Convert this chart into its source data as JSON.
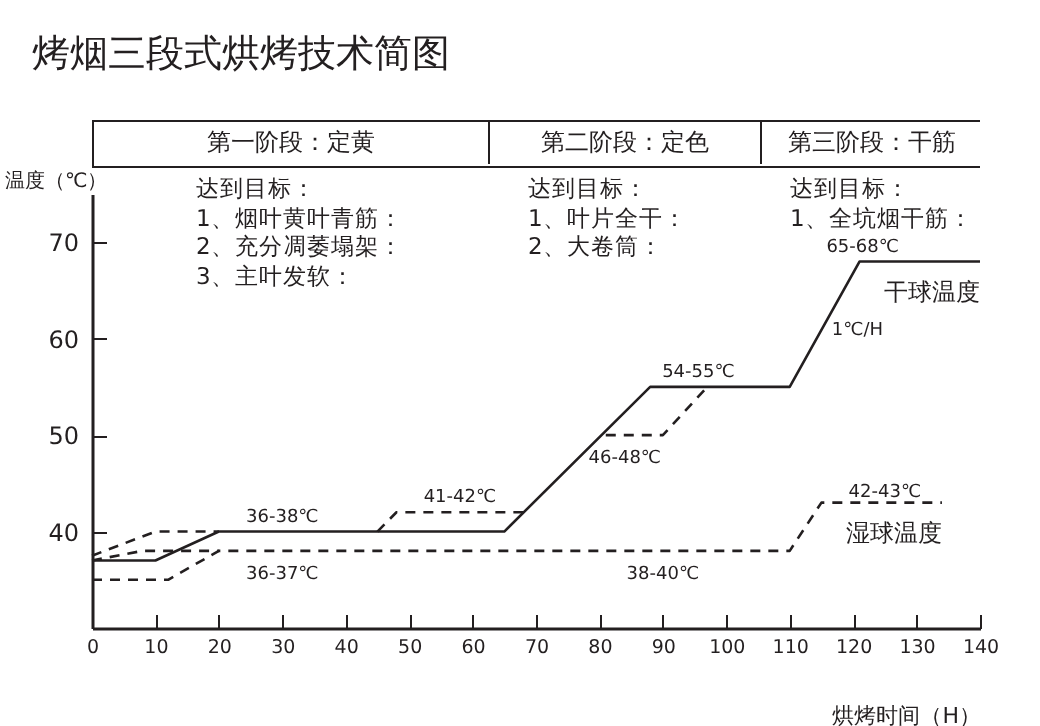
{
  "chart_data": {
    "type": "line",
    "title": "烤烟三段式烘烤技术简图",
    "xlabel": "烘烤时间（H）",
    "ylabel": "温度（℃）",
    "xlim": [
      0,
      140
    ],
    "xticks": [
      0,
      10,
      20,
      30,
      40,
      50,
      60,
      70,
      80,
      90,
      100,
      110,
      120,
      130,
      140
    ],
    "ylim": [
      30,
      75
    ],
    "yticks": [
      40,
      50,
      60,
      70
    ],
    "series": [
      {
        "name": "干球温度",
        "color": "#231f20",
        "line_style": "solid",
        "x": [
          0,
          10,
          20,
          65,
          88,
          110,
          121,
          140
        ],
        "values": [
          37,
          37,
          40,
          40,
          55,
          55,
          68,
          68
        ]
      },
      {
        "color": "#231f20",
        "line_style": "dashed",
        "x": [
          0,
          10,
          20
        ],
        "values": [
          37.5,
          40,
          40
        ]
      },
      {
        "color": "#231f20",
        "line_style": "dashed",
        "x": [
          45,
          48,
          68
        ],
        "values": [
          40,
          42,
          42
        ]
      },
      {
        "color": "#231f20",
        "line_style": "dashed",
        "x": [
          81,
          90,
          97
        ],
        "values": [
          50,
          50,
          55
        ]
      },
      {
        "name": "湿球温度",
        "color": "#231f20",
        "line_style": "dashed",
        "x": [
          0,
          12,
          20,
          110,
          115,
          134
        ],
        "values": [
          35,
          35,
          38,
          38,
          43,
          43
        ]
      },
      {
        "color": "#231f20",
        "line_style": "dashed",
        "x": [
          0,
          8,
          20
        ],
        "values": [
          37,
          38,
          38
        ]
      }
    ],
    "annotations": [
      "第一阶段：定黄",
      "第二阶段：定色",
      "第三阶段：干筋",
      "达到目标：\n1、烟叶黄叶青筋：\n2、充分凋萎塌架：\n3、主叶发软：",
      "达到目标：\n1、叶片全干：\n2、大卷筒：",
      "达到目标：\n1、全坑烟干筋：",
      {
        "text": "36-38℃",
        "x": 30,
        "y": 40
      },
      {
        "text": "36-37℃",
        "x": 30,
        "y": 38
      },
      {
        "text": "41-42℃",
        "x": 58,
        "y": 42
      },
      {
        "text": "54-55℃",
        "x": 95.6,
        "y": 55
      },
      {
        "text": "46-48℃",
        "x": 84,
        "y": 50
      },
      {
        "text": "38-40℃",
        "x": 90,
        "y": 38
      },
      {
        "text": "42-43℃",
        "x": 125,
        "y": 43
      },
      {
        "text": "1℃/H",
        "x": 115,
        "y": 61
      },
      {
        "text": "65-68℃",
        "x": 121.5,
        "y": 68
      }
    ]
  }
}
